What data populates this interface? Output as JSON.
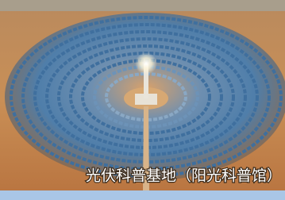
{
  "caption": "光伏科普基地（阳光科普馆）"
}
